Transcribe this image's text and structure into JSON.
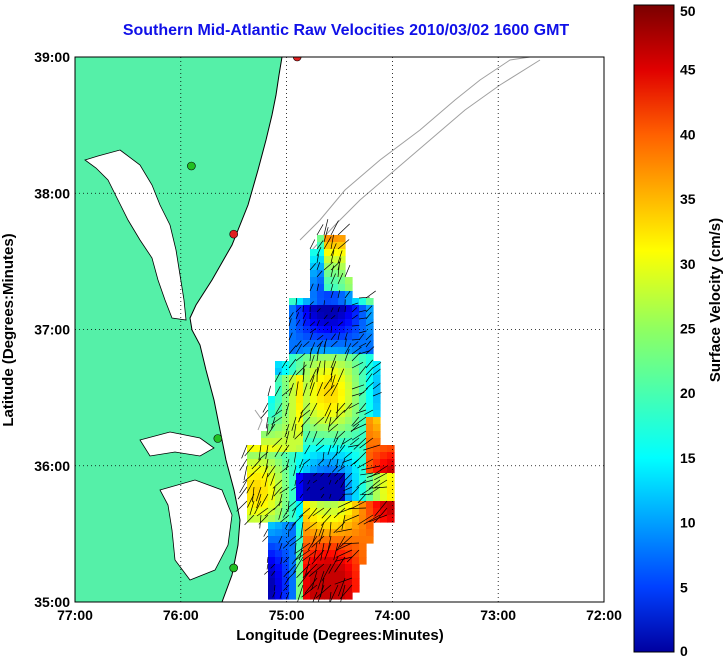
{
  "title": "Southern Mid-Atlantic Raw Velocities 2010/03/02 1600 GMT",
  "map": {
    "xlabel": "Longitude (Degrees:Minutes)",
    "ylabel": "Latitude (Degrees:Minutes)",
    "x_ticks": [
      "77:00",
      "76:00",
      "75:00",
      "74:00",
      "73:00",
      "72:00"
    ],
    "y_ticks": [
      "39:00",
      "38:00",
      "37:00",
      "36:00",
      "35:00"
    ],
    "lon_range": [
      -77,
      -72
    ],
    "lat_range": [
      35,
      39
    ],
    "grid": "dotted",
    "land_color": "#55f0a8",
    "coast_color": "#000000",
    "bathymetry_color": "#a0a0a0",
    "arrow_color": "#000000"
  },
  "colorbar": {
    "label": "Surface Velocity (cm/s)",
    "ticks": [
      "0",
      "5",
      "10",
      "15",
      "20",
      "25",
      "30",
      "35",
      "40",
      "45",
      "50"
    ],
    "range": [
      0,
      50
    ],
    "colormap": "jet"
  },
  "stations": [
    {
      "lon": -74.9,
      "lat": 39.0,
      "color": "#e02020"
    },
    {
      "lon": -75.9,
      "lat": 38.2,
      "color": "#22c022"
    },
    {
      "lon": -75.5,
      "lat": 37.7,
      "color": "#e02020"
    },
    {
      "lon": -75.65,
      "lat": 36.2,
      "color": "#22c022"
    },
    {
      "lon": -75.5,
      "lat": 35.25,
      "color": "#22c022"
    }
  ]
}
